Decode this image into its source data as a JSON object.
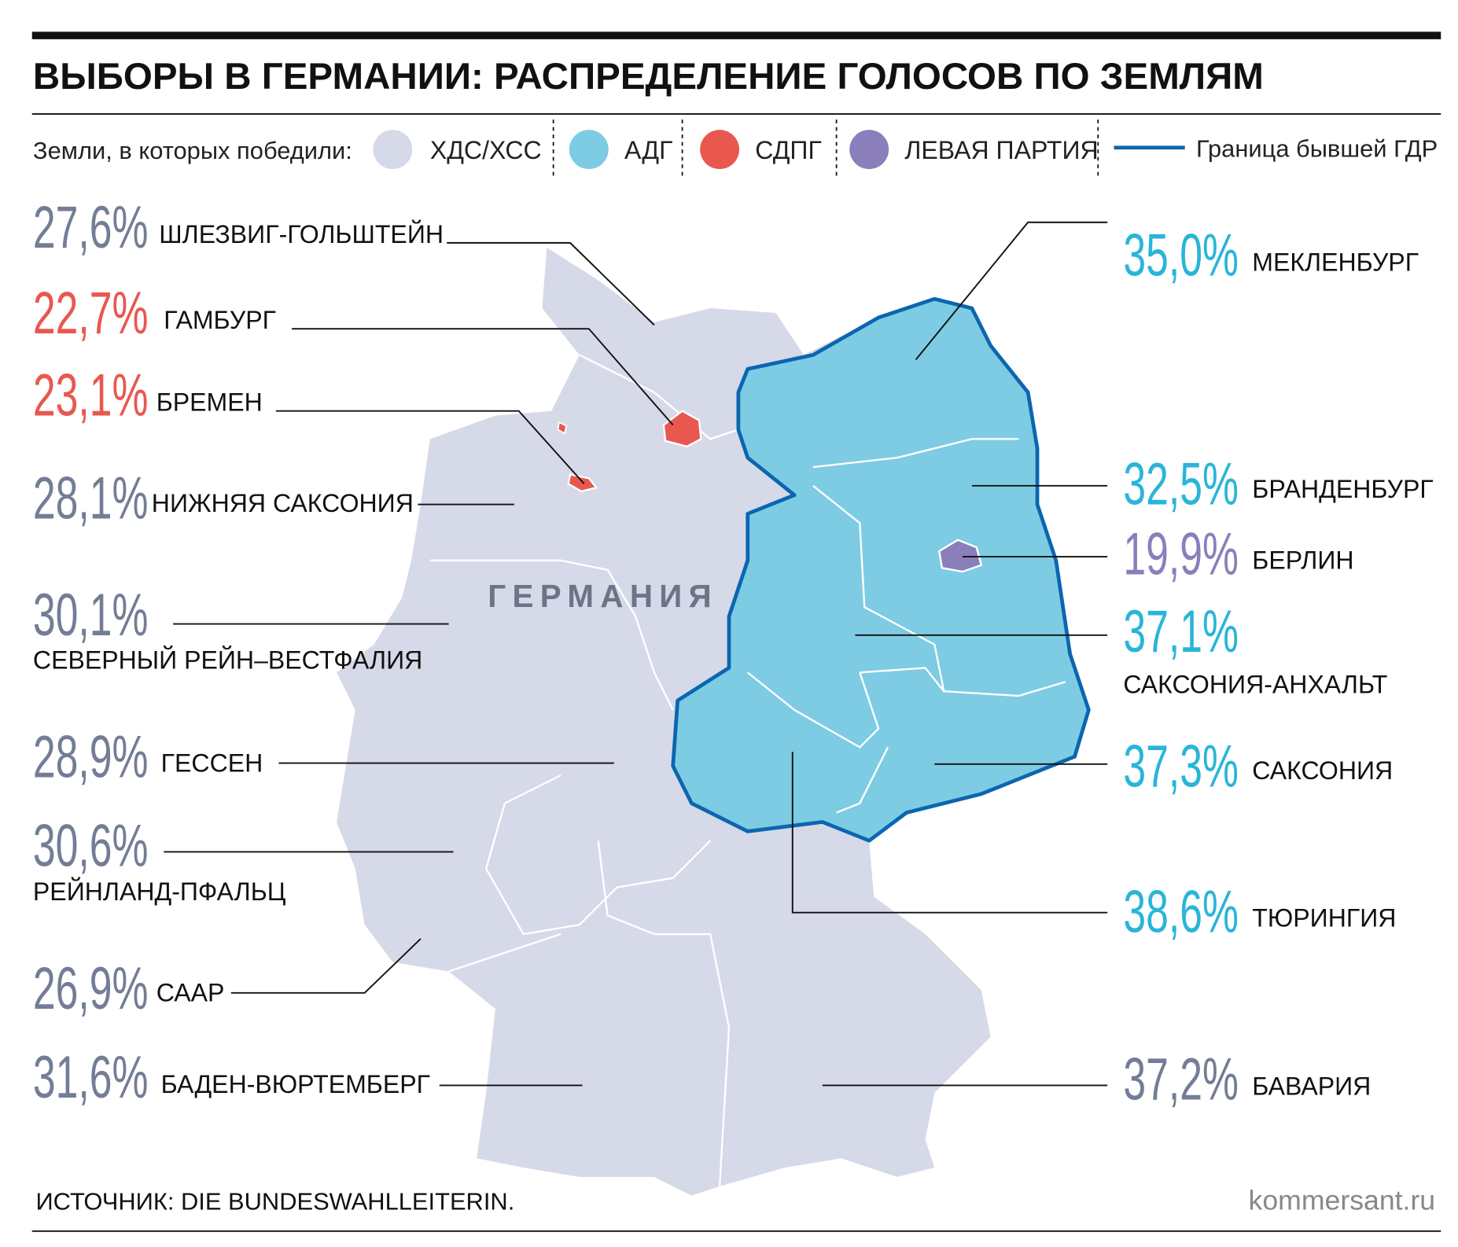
{
  "header": {
    "title": "ВЫБОРЫ В ГЕРМАНИИ: РАСПРЕДЕЛЕНИЕ ГОЛОСОВ ПО ЗЕМЛЯМ"
  },
  "legend": {
    "label": "Земли, в которых победили:",
    "items": [
      {
        "name": "ХДС/ХСС",
        "color": "#d5d9e8"
      },
      {
        "name": "АДГ",
        "color": "#7ecbe4"
      },
      {
        "name": "СДПГ",
        "color": "#e8584f"
      },
      {
        "name": "ЛЕВАЯ ПАРТИЯ",
        "color": "#8a7fbb"
      }
    ],
    "border": {
      "name": "Граница бывшей ГДР",
      "color": "#0b66b0"
    }
  },
  "map": {
    "label": "ГЕРМАНИЯ",
    "regions": [
      {
        "value": "27,6%",
        "name": "ШЛЕЗВИГ-ГОЛЬШТЕЙН",
        "color": "#737d96"
      },
      {
        "value": "22,7%",
        "name": "ГАМБУРГ",
        "color": "#e8584f"
      },
      {
        "value": "23,1%",
        "name": "БРЕМЕН",
        "color": "#e8584f"
      },
      {
        "value": "28,1%",
        "name": "НИЖНЯЯ САКСОНИЯ",
        "color": "#737d96"
      },
      {
        "value": "30,1%",
        "name": "СЕВЕРНЫЙ РЕЙН–ВЕСТФАЛИЯ",
        "color": "#737d96"
      },
      {
        "value": "28,9%",
        "name": "ГЕССЕН",
        "color": "#737d96"
      },
      {
        "value": "30,6%",
        "name": "РЕЙНЛАНД-ПФАЛЬЦ",
        "color": "#737d96"
      },
      {
        "value": "26,9%",
        "name": "СААР",
        "color": "#737d96"
      },
      {
        "value": "31,6%",
        "name": "БАДЕН-ВЮРТЕМБЕРГ",
        "color": "#737d96"
      },
      {
        "value": "35,0%",
        "name": "МЕКЛЕНБУРГ",
        "color": "#29b5d8"
      },
      {
        "value": "32,5%",
        "name": "БРАНДЕНБУРГ",
        "color": "#29b5d8"
      },
      {
        "value": "19,9%",
        "name": "БЕРЛИН",
        "color": "#8a7fbb"
      },
      {
        "value": "37,1%",
        "name": "САКСОНИЯ-АНХАЛЬТ",
        "color": "#29b5d8"
      },
      {
        "value": "37,3%",
        "name": "САКСОНИЯ",
        "color": "#29b5d8"
      },
      {
        "value": "38,6%",
        "name": "ТЮРИНГИЯ",
        "color": "#29b5d8"
      },
      {
        "value": "37,2%",
        "name": "БАВАРИЯ",
        "color": "#737d96"
      }
    ]
  },
  "footer": {
    "source": "ИСТОЧНИК: DIE BUNDESWAHLLEITERIN.",
    "site": "kommersant.ru"
  }
}
